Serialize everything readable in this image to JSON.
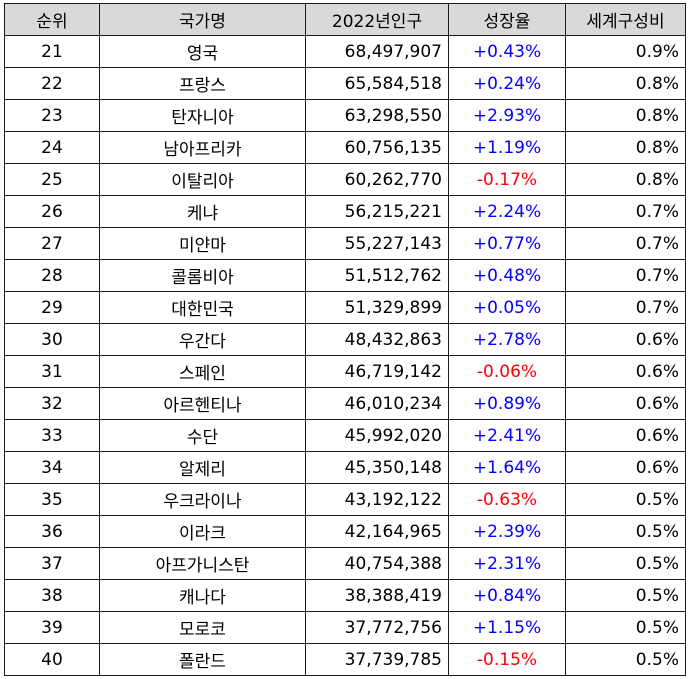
{
  "headers": {
    "rank": "순위",
    "country": "국가명",
    "population": "2022년인구",
    "growth": "성장율",
    "share": "세계구성비"
  },
  "colors": {
    "positive": "#0000ff",
    "negative": "#ff0000",
    "header_bg": "#d9d9d9"
  },
  "rows": [
    {
      "rank": "21",
      "country": "영국",
      "population": "68,497,907",
      "growth": "+0.43%",
      "share": "0.9%"
    },
    {
      "rank": "22",
      "country": "프랑스",
      "population": "65,584,518",
      "growth": "+0.24%",
      "share": "0.8%"
    },
    {
      "rank": "23",
      "country": "탄자니아",
      "population": "63,298,550",
      "growth": "+2.93%",
      "share": "0.8%"
    },
    {
      "rank": "24",
      "country": "남아프리카",
      "population": "60,756,135",
      "growth": "+1.19%",
      "share": "0.8%"
    },
    {
      "rank": "25",
      "country": "이탈리아",
      "population": "60,262,770",
      "growth": "-0.17%",
      "share": "0.8%"
    },
    {
      "rank": "26",
      "country": "케냐",
      "population": "56,215,221",
      "growth": "+2.24%",
      "share": "0.7%"
    },
    {
      "rank": "27",
      "country": "미얀마",
      "population": "55,227,143",
      "growth": "+0.77%",
      "share": "0.7%"
    },
    {
      "rank": "28",
      "country": "콜롬비아",
      "population": "51,512,762",
      "growth": "+0.48%",
      "share": "0.7%"
    },
    {
      "rank": "29",
      "country": "대한민국",
      "population": "51,329,899",
      "growth": "+0.05%",
      "share": "0.7%"
    },
    {
      "rank": "30",
      "country": "우간다",
      "population": "48,432,863",
      "growth": "+2.78%",
      "share": "0.6%"
    },
    {
      "rank": "31",
      "country": "스페인",
      "population": "46,719,142",
      "growth": "-0.06%",
      "share": "0.6%"
    },
    {
      "rank": "32",
      "country": "아르헨티나",
      "population": "46,010,234",
      "growth": "+0.89%",
      "share": "0.6%"
    },
    {
      "rank": "33",
      "country": "수단",
      "population": "45,992,020",
      "growth": "+2.41%",
      "share": "0.6%"
    },
    {
      "rank": "34",
      "country": "알제리",
      "population": "45,350,148",
      "growth": "+1.64%",
      "share": "0.6%"
    },
    {
      "rank": "35",
      "country": "우크라이나",
      "population": "43,192,122",
      "growth": "-0.63%",
      "share": "0.5%"
    },
    {
      "rank": "36",
      "country": "이라크",
      "population": "42,164,965",
      "growth": "+2.39%",
      "share": "0.5%"
    },
    {
      "rank": "37",
      "country": "아프가니스탄",
      "population": "40,754,388",
      "growth": "+2.31%",
      "share": "0.5%"
    },
    {
      "rank": "38",
      "country": "캐나다",
      "population": "38,388,419",
      "growth": "+0.84%",
      "share": "0.5%"
    },
    {
      "rank": "39",
      "country": "모로코",
      "population": "37,772,756",
      "growth": "+1.15%",
      "share": "0.5%"
    },
    {
      "rank": "40",
      "country": "폴란드",
      "population": "37,739,785",
      "growth": "-0.15%",
      "share": "0.5%"
    }
  ]
}
